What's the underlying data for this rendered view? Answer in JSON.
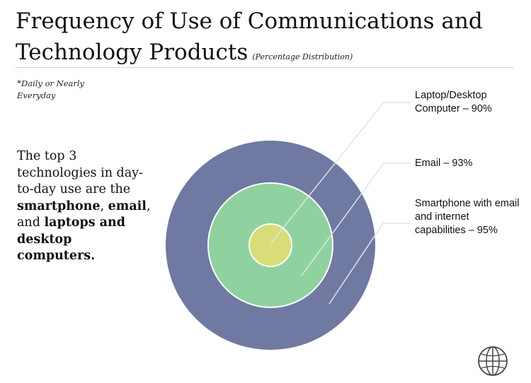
{
  "title": {
    "line1": "Frequency of Use of Communications and",
    "line2": "Technology Products",
    "subtitle": "(Percentage Distribution)"
  },
  "footnote": {
    "star": "*",
    "text": "Daily or Nearly Everyday"
  },
  "summary": {
    "part1": "The top 3 technologies in day-to-day use are the",
    "bold1": "smartphone",
    "sep1": ",",
    "bold2": "email",
    "sep2": ", and",
    "bold3": "laptops and desktop computers."
  },
  "rings": [
    {
      "name": "Smartphone with email and internet capabilities",
      "value": 95,
      "color": "#6f79a2"
    },
    {
      "name": "Email",
      "value": 93,
      "color": "#8fd29f"
    },
    {
      "name": "Laptop/Desktop Computer",
      "value": 90,
      "color": "#d8dd78"
    }
  ],
  "labels": {
    "laptop": "Laptop/Desktop Computer – 90%",
    "email": "Email – 93%",
    "phone": "Smartphone with email and internet capabilities – 95%"
  },
  "icon": "globe-icon"
}
